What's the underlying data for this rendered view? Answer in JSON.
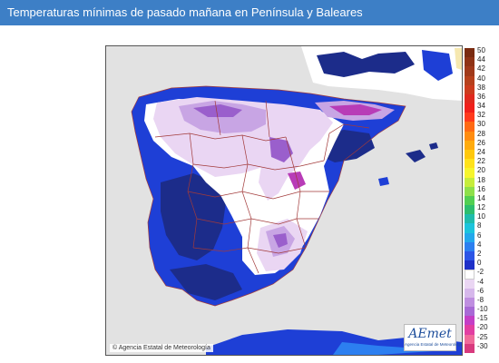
{
  "header": {
    "title": "Temperaturas mínimas de pasado mañana en Península y Baleares"
  },
  "map": {
    "credit": "© Agencia Estatal de Meteorología",
    "logo_text": "AEmet",
    "logo_subtext": "Agencia Estatal de Meteorología",
    "colors": {
      "sea": "#e2e2e2",
      "coast_blue": "#1e3fd6",
      "dark_blue": "#1c2c8a",
      "white_zero": "#ffffff",
      "light_lilac": "#ead6f3",
      "lilac": "#c8a5e4",
      "purple": "#9a5fcc",
      "magenta": "#b83cb7",
      "border_line": "#a23a3a"
    }
  },
  "legend": {
    "items": [
      {
        "label": "50",
        "color": "#7a2b10"
      },
      {
        "label": "44",
        "color": "#8f3315"
      },
      {
        "label": "42",
        "color": "#a0391a"
      },
      {
        "label": "40",
        "color": "#b6401c"
      },
      {
        "label": "38",
        "color": "#cc3b1d"
      },
      {
        "label": "36",
        "color": "#e0291d"
      },
      {
        "label": "34",
        "color": "#f0201a"
      },
      {
        "label": "32",
        "color": "#ff3a1c"
      },
      {
        "label": "30",
        "color": "#ff6a14"
      },
      {
        "label": "28",
        "color": "#ff8c10"
      },
      {
        "label": "26",
        "color": "#ffab0e"
      },
      {
        "label": "24",
        "color": "#ffc80c"
      },
      {
        "label": "22",
        "color": "#ffe21a"
      },
      {
        "label": "20",
        "color": "#f6f52c"
      },
      {
        "label": "18",
        "color": "#c6ed3b"
      },
      {
        "label": "16",
        "color": "#8ee04a"
      },
      {
        "label": "14",
        "color": "#52cf52"
      },
      {
        "label": "12",
        "color": "#2dbe6e"
      },
      {
        "label": "10",
        "color": "#1fbcab"
      },
      {
        "label": "8",
        "color": "#1cc4dc"
      },
      {
        "label": "6",
        "color": "#23a8ec"
      },
      {
        "label": "4",
        "color": "#2c7ff0"
      },
      {
        "label": "2",
        "color": "#2b55e6"
      },
      {
        "label": "0",
        "color": "#1e30c8"
      },
      {
        "label": "-2",
        "color": "#ffffff"
      },
      {
        "label": "-4",
        "color": "#ead6f3"
      },
      {
        "label": "-6",
        "color": "#d6b8eb"
      },
      {
        "label": "-8",
        "color": "#bf8fe0"
      },
      {
        "label": "-10",
        "color": "#a86ad6"
      },
      {
        "label": "-15",
        "color": "#c43fc6"
      },
      {
        "label": "-20",
        "color": "#e23fa2"
      },
      {
        "label": "-25",
        "color": "#f06a9a"
      },
      {
        "label": "-30",
        "color": "#d83a7e"
      }
    ]
  }
}
